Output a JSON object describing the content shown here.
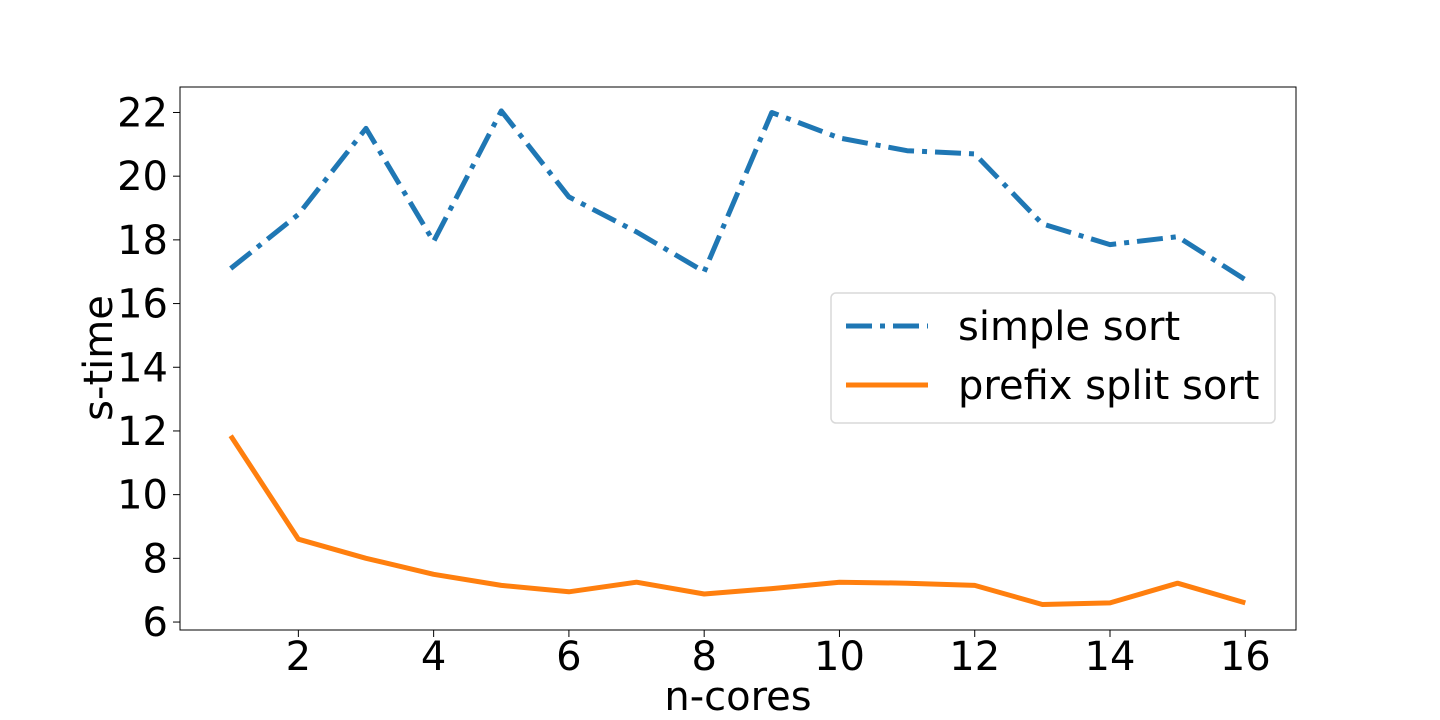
{
  "chart_data": {
    "type": "line",
    "xlabel": "n-cores",
    "ylabel": "s-time",
    "x": [
      1,
      2,
      3,
      4,
      5,
      6,
      7,
      8,
      9,
      10,
      11,
      12,
      13,
      14,
      15,
      16
    ],
    "xticks": [
      "2",
      "4",
      "6",
      "8",
      "10",
      "12",
      "14",
      "16"
    ],
    "yticks": [
      "6",
      "8",
      "10",
      "12",
      "14",
      "16",
      "18",
      "20",
      "22"
    ],
    "xlim": [
      0.25,
      16.75
    ],
    "ylim": [
      5.75,
      22.8
    ],
    "grid": false,
    "legend_position": "center-right",
    "series": [
      {
        "name": "simple sort",
        "color": "#1f77b4",
        "style": "dash-dot",
        "values": [
          17.1,
          18.8,
          21.5,
          17.95,
          22.05,
          19.35,
          18.25,
          17.0,
          22.0,
          21.2,
          20.8,
          20.7,
          18.5,
          17.85,
          18.1,
          16.75
        ]
      },
      {
        "name": "prefix split sort",
        "color": "#ff7f0e",
        "style": "solid",
        "values": [
          11.85,
          8.6,
          8.0,
          7.5,
          7.15,
          6.95,
          7.25,
          6.88,
          7.05,
          7.25,
          7.22,
          7.15,
          6.55,
          6.6,
          7.22,
          6.6
        ]
      }
    ]
  }
}
